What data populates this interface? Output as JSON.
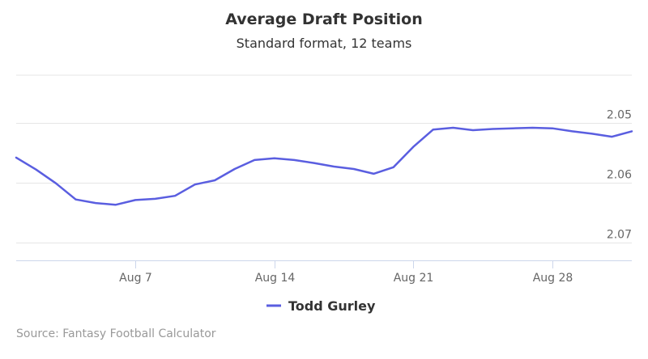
{
  "chart_data": {
    "type": "line",
    "title": "Average Draft Position",
    "subtitle": "Standard format, 12 teams",
    "x_ticks": [
      "Aug 7",
      "Aug 14",
      "Aug 21",
      "Aug 28"
    ],
    "y_ticks": [
      "2.05",
      "2.06",
      "2.07"
    ],
    "ylim": [
      2.042,
      2.073
    ],
    "y_reversed": true,
    "grid": true,
    "legend_position": "bottom-center",
    "credits": "Source: Fantasy Football Calculator",
    "series": [
      {
        "name": "Todd Gurley",
        "color": "#5a5ee0",
        "x": [
          "Aug 1",
          "Aug 2",
          "Aug 3",
          "Aug 4",
          "Aug 5",
          "Aug 6",
          "Aug 7",
          "Aug 8",
          "Aug 9",
          "Aug 10",
          "Aug 11",
          "Aug 12",
          "Aug 13",
          "Aug 14",
          "Aug 15",
          "Aug 16",
          "Aug 17",
          "Aug 18",
          "Aug 19",
          "Aug 20",
          "Aug 21",
          "Aug 22",
          "Aug 23",
          "Aug 24",
          "Aug 25",
          "Aug 26",
          "Aug 27",
          "Aug 28",
          "Aug 29",
          "Aug 30",
          "Aug 31",
          "Sep 1"
        ],
        "values": [
          2.0558,
          2.0578,
          2.0601,
          2.0628,
          2.0634,
          2.0637,
          2.0629,
          2.0627,
          2.0622,
          2.0603,
          2.0596,
          2.0577,
          2.0562,
          2.0559,
          2.0562,
          2.0567,
          2.0573,
          2.0577,
          2.0585,
          2.0574,
          2.054,
          2.0511,
          2.0508,
          2.0512,
          2.051,
          2.0509,
          2.0508,
          2.0509,
          2.0514,
          2.0518,
          2.0523,
          2.0514
        ]
      }
    ]
  }
}
